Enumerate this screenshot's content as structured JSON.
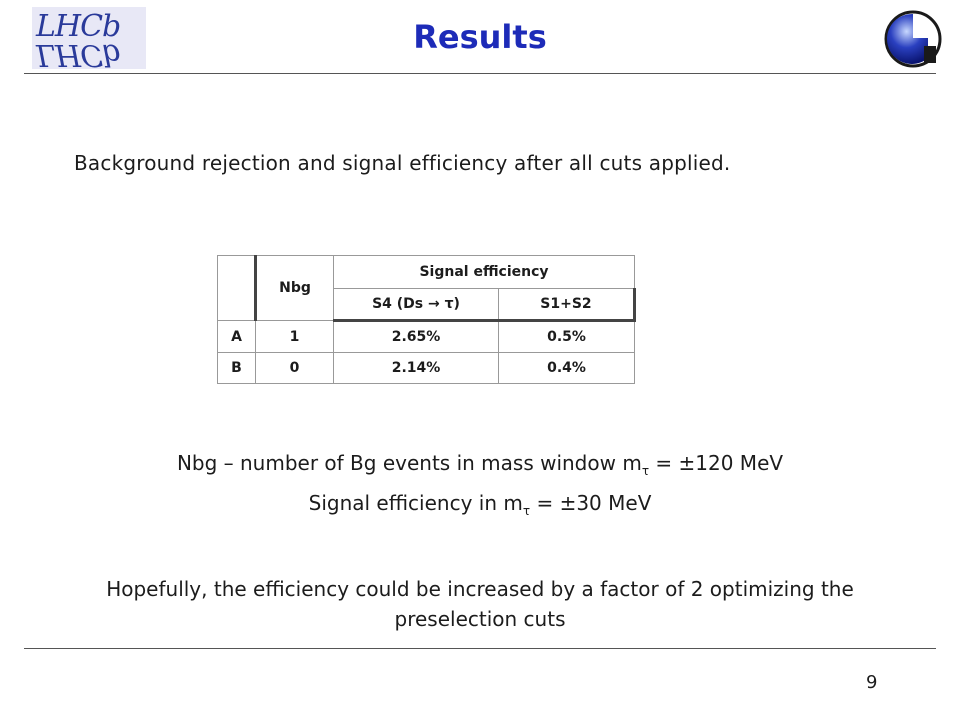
{
  "header": {
    "title": "Results",
    "logo_left_text_top": "LHCb",
    "logo_left_text_bottom": "LHCb"
  },
  "intro": "Background rejection and signal efficiency after all cuts applied.",
  "table": {
    "header_nbg": "Nbg",
    "header_signal": "Signal efficiency",
    "header_s4": "S4 (Ds → τ)",
    "header_s12": "S1+S2",
    "rows": [
      {
        "label": "A",
        "nbg": "1",
        "s4": "2.65%",
        "s12": "0.5%"
      },
      {
        "label": "B",
        "nbg": "0",
        "s4": "2.14%",
        "s12": "0.4%"
      }
    ]
  },
  "definitions": {
    "line1_pre": "Nbg – number of Bg events in mass window  m",
    "line1_sub": "τ",
    "line1_post": " =  ±120 MeV",
    "line2_pre": "Signal efficiency in m",
    "line2_sub": "τ",
    "line2_post": " =  ±30 MeV"
  },
  "conclusion": {
    "line1": "Hopefully,  the efficiency could be increased by a factor of 2 optimizing the",
    "line2": "preselection cuts"
  },
  "page_number": "9",
  "colors": {
    "title": "#1d2bb8",
    "logo": "#2a3a9a"
  }
}
